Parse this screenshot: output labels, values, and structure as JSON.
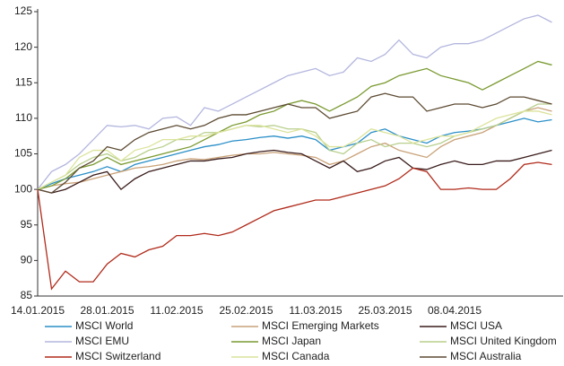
{
  "chart_data": {
    "type": "line",
    "categories": [
      "14.01.2015",
      null,
      null,
      null,
      null,
      "28.01.2015",
      null,
      null,
      null,
      null,
      "11.02.2015",
      null,
      null,
      null,
      null,
      "25.02.2015",
      null,
      null,
      null,
      null,
      "11.03.2015",
      null,
      null,
      null,
      null,
      "25.03.2015",
      null,
      null,
      null,
      null,
      "08.04.2015",
      null,
      null,
      null,
      null,
      null,
      null,
      null
    ],
    "ylim": [
      85,
      125
    ],
    "yticks": [
      85,
      90,
      95,
      100,
      105,
      110,
      115,
      120,
      125
    ],
    "grid": false,
    "series": [
      {
        "name": "MSCI World",
        "color": "#2a8fc8",
        "values": [
          100,
          100.8,
          101.5,
          102,
          102.5,
          103.2,
          102.5,
          103.5,
          104,
          104.5,
          105,
          105.5,
          106,
          106.3,
          106.8,
          107,
          107.3,
          107.5,
          107.2,
          107.5,
          107,
          105.5,
          106,
          106.5,
          108,
          108.5,
          107.5,
          107,
          106.5,
          107.5,
          108,
          108.2,
          108.5,
          109,
          109.5,
          110,
          109.5,
          109.8
        ]
      },
      {
        "name": "MSCI Emerging Markets",
        "color": "#c9a278",
        "values": [
          100,
          100.5,
          100.8,
          101,
          101.5,
          102,
          102.5,
          103,
          103.2,
          103.5,
          104,
          104.3,
          104.2,
          104.5,
          104.8,
          105,
          105,
          105.2,
          105,
          104.8,
          104.5,
          103.5,
          104,
          105,
          106,
          106.5,
          105.5,
          105,
          104.5,
          106,
          107,
          107.5,
          108,
          109,
          110,
          111,
          111.5,
          111
        ]
      },
      {
        "name": "MSCI USA",
        "color": "#3a1c1c",
        "values": [
          100,
          99.5,
          100,
          101,
          102,
          102.5,
          100,
          101.5,
          102.5,
          103,
          103.5,
          104,
          104,
          104.3,
          104.5,
          105,
          105.3,
          105.5,
          105.2,
          105,
          104,
          103,
          104,
          102.5,
          103,
          104,
          104.5,
          103,
          102.8,
          103.5,
          104,
          103.5,
          103.5,
          104,
          104,
          104.5,
          105,
          105.5
        ]
      },
      {
        "name": "MSCI EMU",
        "color": "#b3b6de",
        "values": [
          100,
          102.5,
          103.5,
          105,
          107,
          109,
          108.8,
          109,
          108.5,
          110,
          110.2,
          109,
          111.5,
          111,
          112,
          113,
          114,
          115,
          116,
          116.5,
          117,
          116,
          116.5,
          118.5,
          118,
          119,
          121,
          119,
          118.5,
          120,
          120.5,
          120.5,
          121,
          122,
          123,
          124,
          124.5,
          123.5
        ]
      },
      {
        "name": "MSCI Japan",
        "color": "#7a9a30",
        "values": [
          100,
          100.5,
          101.5,
          103,
          103.5,
          104.5,
          103.5,
          104,
          104.5,
          105,
          105.5,
          106,
          107,
          108,
          109,
          109.5,
          110.5,
          111,
          112,
          112.5,
          112,
          111,
          112,
          113,
          114.5,
          115,
          116,
          116.5,
          117,
          116,
          115.5,
          115,
          114,
          115,
          116,
          117,
          118,
          117.5
        ]
      },
      {
        "name": "MSCI United Kingdom",
        "color": "#b8cf8c",
        "values": [
          100,
          101,
          102,
          103.5,
          104.5,
          105,
          104,
          104.5,
          105.5,
          106,
          107,
          107,
          108,
          108,
          108.5,
          109,
          108.8,
          109,
          108.5,
          108.5,
          108,
          105.5,
          105,
          106.5,
          107,
          106,
          106.5,
          106.5,
          106,
          106.5,
          107.5,
          108,
          108.5,
          109,
          110,
          111,
          112,
          112
        ]
      },
      {
        "name": "MSCI Switzerland",
        "color": "#b02a1a",
        "values": [
          100,
          86,
          88.5,
          87,
          87,
          89.5,
          91,
          90.5,
          91.5,
          92,
          93.5,
          93.5,
          93.8,
          93.5,
          94,
          95,
          96,
          97,
          97.5,
          98,
          98.5,
          98.5,
          99,
          99.5,
          100,
          100.5,
          101.5,
          103,
          102.5,
          100,
          100,
          100.2,
          100,
          100,
          101.5,
          103.5,
          103.8,
          103.5
        ]
      },
      {
        "name": "MSCI Canada",
        "color": "#dce39b",
        "values": [
          100,
          101,
          102,
          104.5,
          105.5,
          105.5,
          104,
          105.5,
          106,
          107,
          107,
          107.5,
          107.5,
          108,
          108.5,
          109,
          109,
          108.5,
          108,
          108.5,
          107.5,
          106,
          106,
          107,
          108.5,
          108,
          107.5,
          106.5,
          107,
          107.5,
          107.5,
          108,
          109,
          110,
          110.5,
          111,
          111,
          110.5
        ]
      },
      {
        "name": "MSCI Australia",
        "color": "#5c4a32",
        "values": [
          100,
          99.5,
          101,
          103,
          104,
          106,
          105.5,
          107,
          108,
          108.5,
          109,
          108.5,
          109,
          110,
          110.5,
          110.5,
          111,
          111.5,
          112,
          111.5,
          111.5,
          110,
          110.5,
          111,
          113,
          113.5,
          113,
          113,
          111,
          111.5,
          112,
          112,
          111.5,
          112,
          113,
          113,
          112.5,
          112
        ]
      }
    ]
  }
}
